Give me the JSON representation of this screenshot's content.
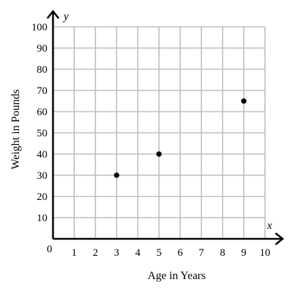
{
  "chart_data": {
    "type": "scatter",
    "title": "",
    "xlabel": "Age in Years",
    "ylabel": "Weight in Pounds",
    "x_axis_symbol": "x",
    "y_axis_symbol": "y",
    "origin_label": "0",
    "xlim": [
      0,
      10
    ],
    "ylim": [
      0,
      100
    ],
    "x_ticks": [
      "1",
      "2",
      "3",
      "4",
      "5",
      "6",
      "7",
      "8",
      "9",
      "10"
    ],
    "y_ticks": [
      "10",
      "20",
      "30",
      "40",
      "50",
      "60",
      "70",
      "80",
      "90",
      "100"
    ],
    "grid": true,
    "series": [
      {
        "points": [
          {
            "x": 3,
            "y": 30
          },
          {
            "x": 5,
            "y": 40
          },
          {
            "x": 9,
            "y": 65
          }
        ]
      }
    ],
    "colors": {
      "point": "#000000",
      "axis": "#000000",
      "grid": "#bdbdbd"
    }
  }
}
